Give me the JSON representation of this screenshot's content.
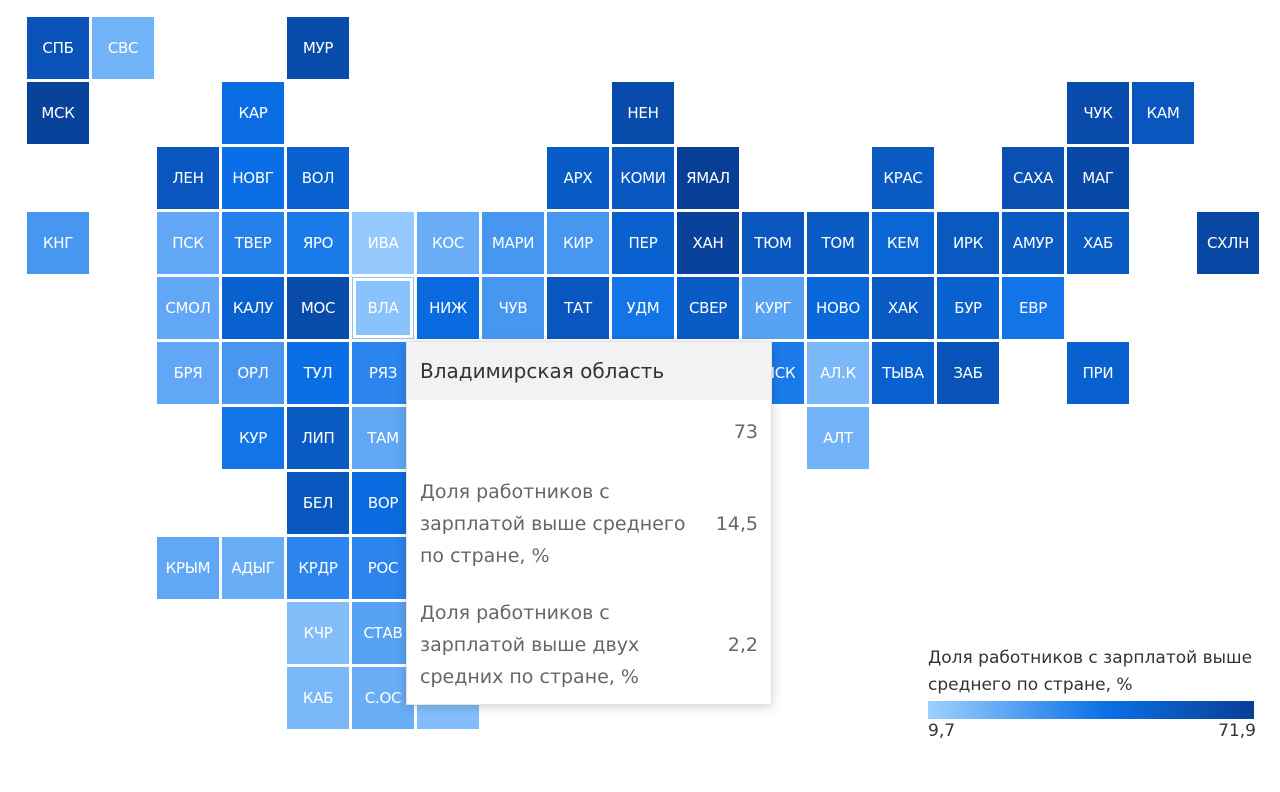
{
  "tiles": [
    {
      "code": "СПБ",
      "row": 0,
      "col": 0,
      "v": 60
    },
    {
      "code": "СВС",
      "row": 0,
      "col": 1,
      "v": 20
    },
    {
      "code": "МУР",
      "row": 0,
      "col": 4,
      "v": 65
    },
    {
      "code": "МСК",
      "row": 1,
      "col": 0,
      "v": 70
    },
    {
      "code": "КАР",
      "row": 1,
      "col": 3,
      "v": 45
    },
    {
      "code": "НЕН",
      "row": 1,
      "col": 9,
      "v": 65
    },
    {
      "code": "ЧУК",
      "row": 1,
      "col": 16,
      "v": 65
    },
    {
      "code": "КАМ",
      "row": 1,
      "col": 17,
      "v": 58
    },
    {
      "code": "ЛЕН",
      "row": 2,
      "col": 2,
      "v": 58
    },
    {
      "code": "НОВГ",
      "row": 2,
      "col": 3,
      "v": 44
    },
    {
      "code": "ВОЛ",
      "row": 2,
      "col": 4,
      "v": 52
    },
    {
      "code": "АРХ",
      "row": 2,
      "col": 8,
      "v": 55
    },
    {
      "code": "КОМИ",
      "row": 2,
      "col": 9,
      "v": 58
    },
    {
      "code": "ЯМАЛ",
      "row": 2,
      "col": 10,
      "v": 71.9
    },
    {
      "code": "КРАС",
      "row": 2,
      "col": 13,
      "v": 56
    },
    {
      "code": "САХА",
      "row": 2,
      "col": 15,
      "v": 62
    },
    {
      "code": "МАГ",
      "row": 2,
      "col": 16,
      "v": 66
    },
    {
      "code": "КНГ",
      "row": 3,
      "col": 0,
      "v": 30
    },
    {
      "code": "ПСК",
      "row": 3,
      "col": 2,
      "v": 24
    },
    {
      "code": "ТВЕР",
      "row": 3,
      "col": 3,
      "v": 38
    },
    {
      "code": "ЯРО",
      "row": 3,
      "col": 4,
      "v": 40
    },
    {
      "code": "ИВА",
      "row": 3,
      "col": 5,
      "v": 12
    },
    {
      "code": "КОС",
      "row": 3,
      "col": 6,
      "v": 22
    },
    {
      "code": "МАРИ",
      "row": 3,
      "col": 7,
      "v": 30
    },
    {
      "code": "КИР",
      "row": 3,
      "col": 8,
      "v": 30
    },
    {
      "code": "ПЕР",
      "row": 3,
      "col": 9,
      "v": 52
    },
    {
      "code": "ХАН",
      "row": 3,
      "col": 10,
      "v": 70
    },
    {
      "code": "ТЮМ",
      "row": 3,
      "col": 11,
      "v": 58
    },
    {
      "code": "ТОМ",
      "row": 3,
      "col": 12,
      "v": 56
    },
    {
      "code": "КЕМ",
      "row": 3,
      "col": 13,
      "v": 50
    },
    {
      "code": "ИРК",
      "row": 3,
      "col": 14,
      "v": 57
    },
    {
      "code": "АМУР",
      "row": 3,
      "col": 15,
      "v": 56
    },
    {
      "code": "ХАБ",
      "row": 3,
      "col": 16,
      "v": 56
    },
    {
      "code": "СХЛН",
      "row": 3,
      "col": 18,
      "v": 67
    },
    {
      "code": "СМОЛ",
      "row": 4,
      "col": 2,
      "v": 24
    },
    {
      "code": "КАЛУ",
      "row": 4,
      "col": 3,
      "v": 52
    },
    {
      "code": "МОС",
      "row": 4,
      "col": 4,
      "v": 65
    },
    {
      "code": "ВЛА",
      "row": 4,
      "col": 5,
      "v": 14.5
    },
    {
      "code": "НИЖ",
      "row": 4,
      "col": 6,
      "v": 46
    },
    {
      "code": "ЧУВ",
      "row": 4,
      "col": 7,
      "v": 30
    },
    {
      "code": "ТАТ",
      "row": 4,
      "col": 8,
      "v": 58
    },
    {
      "code": "УДМ",
      "row": 4,
      "col": 9,
      "v": 42
    },
    {
      "code": "СВЕР",
      "row": 4,
      "col": 10,
      "v": 55
    },
    {
      "code": "КУРГ",
      "row": 4,
      "col": 11,
      "v": 26
    },
    {
      "code": "НОВО",
      "row": 4,
      "col": 12,
      "v": 48
    },
    {
      "code": "ХАК",
      "row": 4,
      "col": 13,
      "v": 56
    },
    {
      "code": "БУР",
      "row": 4,
      "col": 14,
      "v": 52
    },
    {
      "code": "ЕВР",
      "row": 4,
      "col": 15,
      "v": 42
    },
    {
      "code": "БРЯ",
      "row": 5,
      "col": 2,
      "v": 24
    },
    {
      "code": "ОРЛ",
      "row": 5,
      "col": 3,
      "v": 30
    },
    {
      "code": "ТУЛ",
      "row": 5,
      "col": 4,
      "v": 44
    },
    {
      "code": "РЯЗ",
      "row": 5,
      "col": 5,
      "v": 36
    },
    {
      "code": "ОМСК",
      "row": 5,
      "col": 11,
      "v": 40
    },
    {
      "code": "АЛ.К",
      "row": 5,
      "col": 12,
      "v": 18
    },
    {
      "code": "ТЫВА",
      "row": 5,
      "col": 13,
      "v": 52
    },
    {
      "code": "ЗАБ",
      "row": 5,
      "col": 14,
      "v": 60
    },
    {
      "code": "ПРИ",
      "row": 5,
      "col": 16,
      "v": 52
    },
    {
      "code": "КУР",
      "row": 6,
      "col": 3,
      "v": 42
    },
    {
      "code": "ЛИП",
      "row": 6,
      "col": 4,
      "v": 56
    },
    {
      "code": "ТАМ",
      "row": 6,
      "col": 5,
      "v": 24
    },
    {
      "code": "АЛТ",
      "row": 6,
      "col": 12,
      "v": 20
    },
    {
      "code": "БЕЛ",
      "row": 7,
      "col": 4,
      "v": 58
    },
    {
      "code": "ВОР",
      "row": 7,
      "col": 5,
      "v": 46
    },
    {
      "code": "КРЫМ",
      "row": 8,
      "col": 2,
      "v": 24
    },
    {
      "code": "АДЫГ",
      "row": 8,
      "col": 3,
      "v": 22
    },
    {
      "code": "КРДР",
      "row": 8,
      "col": 4,
      "v": 36
    },
    {
      "code": "РОС",
      "row": 8,
      "col": 5,
      "v": 36
    },
    {
      "code": "КЧР",
      "row": 9,
      "col": 4,
      "v": 16
    },
    {
      "code": "СТАВ",
      "row": 9,
      "col": 5,
      "v": 26
    },
    {
      "code": "КАБ",
      "row": 10,
      "col": 4,
      "v": 18
    },
    {
      "code": "С.ОС",
      "row": 10,
      "col": 5,
      "v": 22
    },
    {
      "code": "",
      "row": 10,
      "col": 6,
      "v": 16
    }
  ],
  "highlight": "ВЛА",
  "tooltip": {
    "title": "Владимирская область",
    "rows": [
      {
        "label": "",
        "value": "73"
      },
      {
        "label": "Доля работников с зарплатой выше среднего по стране, %",
        "value": "14,5"
      },
      {
        "label": "Доля работников с зарплатой выше двух средних по стране, %",
        "value": "2,2"
      }
    ]
  },
  "legend": {
    "title": "Доля работников с зарплатой выше среднего по стране, %",
    "min_label": "9,7",
    "max_label": "71,9",
    "min": 9.7,
    "max": 71.9,
    "colors": [
      "#9fd0ff",
      "#0a6fe6",
      "#083f96"
    ]
  }
}
